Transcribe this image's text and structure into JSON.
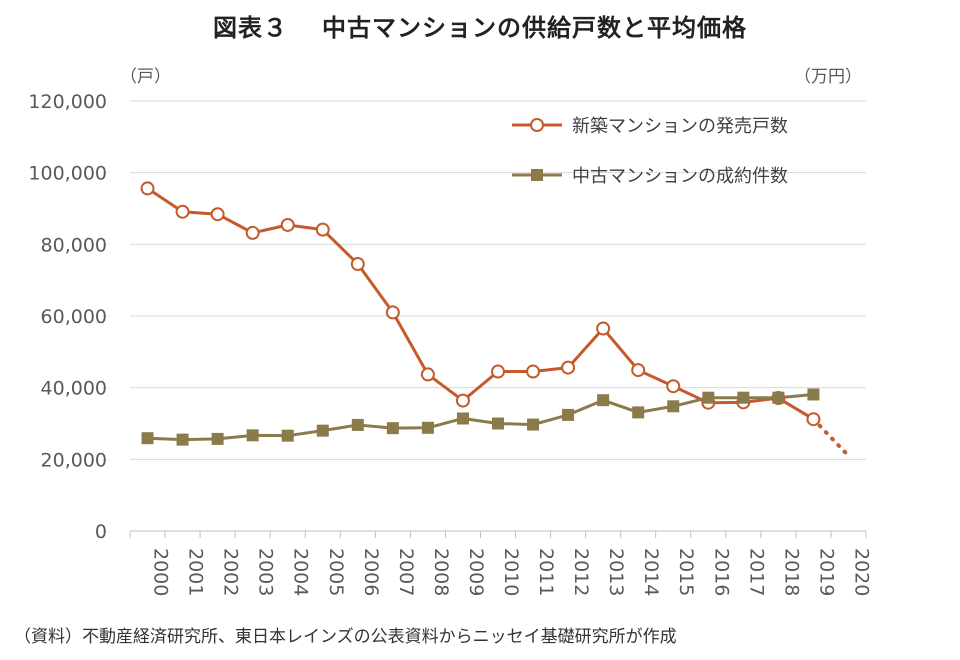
{
  "figure": {
    "title_label": "図表３",
    "title_text": "中古マンションの供給戸数と平均価格",
    "source": "（資料）不動産経済研究所、東日本レインズの公表資料からニッセイ基礎研究所が作成"
  },
  "chart_data": {
    "type": "line",
    "title": "図表３　中古マンションの供給戸数と平均価格",
    "left_unit": "（戸）",
    "right_unit": "（万円）",
    "ylim": [
      0,
      120000
    ],
    "yticks": [
      0,
      20000,
      40000,
      60000,
      80000,
      100000,
      120000
    ],
    "ytick_labels": [
      "0",
      "20,000",
      "40,000",
      "60,000",
      "80,000",
      "100,000",
      "120,000"
    ],
    "categories": [
      "2000",
      "2001",
      "2002",
      "2003",
      "2004",
      "2005",
      "2006",
      "2007",
      "2008",
      "2009",
      "2010",
      "2011",
      "2012",
      "2013",
      "2014",
      "2015",
      "2016",
      "2017",
      "2018",
      "2019",
      "2020"
    ],
    "series": [
      {
        "name": "新築マンションの発売戸数",
        "color": "#c55a2b",
        "marker": "circle-open",
        "values": [
          95600,
          89100,
          88400,
          83200,
          85400,
          84100,
          74500,
          61000,
          43700,
          36400,
          44500,
          44500,
          45600,
          56500,
          44900,
          40400,
          35800,
          35900,
          37100,
          31200,
          null
        ],
        "projection": [
          31200,
          21000
        ]
      },
      {
        "name": "中古マンションの成約件数",
        "color": "#8b7a4a",
        "marker": "square",
        "values": [
          25900,
          25500,
          25700,
          26700,
          26600,
          28000,
          29600,
          28700,
          28800,
          31400,
          30000,
          29700,
          32400,
          36500,
          33100,
          34800,
          37200,
          37200,
          37200,
          38100,
          null
        ]
      }
    ],
    "grid": "horizontal",
    "legend_position": "top-right"
  }
}
